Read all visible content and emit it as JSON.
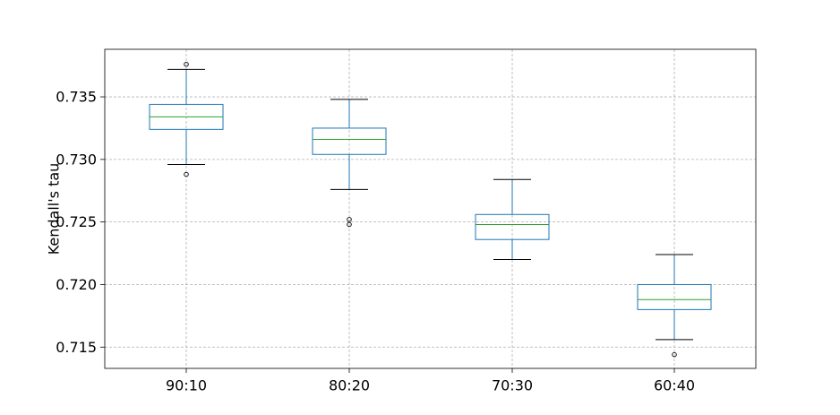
{
  "chart_data": {
    "type": "box",
    "title": "",
    "xlabel": "",
    "ylabel": "Kendall's tau",
    "ylim": [
      0.7133,
      0.7388
    ],
    "yticks": [
      0.715,
      0.72,
      0.725,
      0.73,
      0.735
    ],
    "ytick_labels": [
      "0.715",
      "0.720",
      "0.725",
      "0.730",
      "0.735"
    ],
    "grid": true,
    "categories": [
      "90:10",
      "80:20",
      "70:30",
      "60:40"
    ],
    "boxes": [
      {
        "category": "90:10",
        "whisker_low": 0.7296,
        "q1": 0.7324,
        "median": 0.7334,
        "q3": 0.7344,
        "whisker_high": 0.7372,
        "outliers": [
          0.7288,
          0.7376
        ]
      },
      {
        "category": "80:20",
        "whisker_low": 0.7276,
        "q1": 0.7304,
        "median": 0.7316,
        "q3": 0.7325,
        "whisker_high": 0.7348,
        "outliers": [
          0.7252,
          0.7248
        ]
      },
      {
        "category": "70:30",
        "whisker_low": 0.722,
        "q1": 0.7236,
        "median": 0.7248,
        "q3": 0.7256,
        "whisker_high": 0.7284,
        "outliers": []
      },
      {
        "category": "60:40",
        "whisker_low": 0.7156,
        "q1": 0.718,
        "median": 0.7188,
        "q3": 0.72,
        "whisker_high": 0.7224,
        "outliers": [
          0.7144
        ]
      }
    ],
    "colors": {
      "box": "#1f77b4",
      "median": "#2ca02c",
      "whisker_cap": "#000000",
      "grid": "#b0b0b0"
    }
  }
}
